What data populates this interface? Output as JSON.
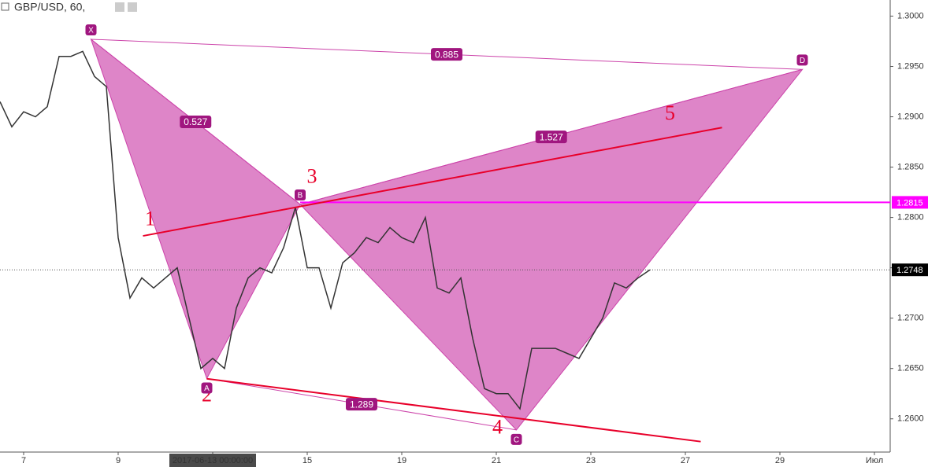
{
  "chart_data": {
    "type": "line",
    "title": "GBP/USD, 60,",
    "color": "#333333",
    "categories": [
      null,
      null,
      "7",
      null,
      null,
      null,
      null,
      null,
      null,
      null,
      "9",
      null,
      null,
      null,
      null,
      null,
      null,
      null,
      "2017-06-13 00:00:00",
      null,
      null,
      null,
      null,
      null,
      null,
      null,
      "15",
      null,
      null,
      null,
      null,
      null,
      null,
      null,
      "19",
      null,
      null,
      null,
      null,
      null,
      null,
      null,
      "21",
      null,
      null,
      null,
      null,
      null,
      null,
      null,
      "23",
      null,
      null,
      null,
      null,
      null,
      null,
      null,
      "27",
      null,
      null,
      null,
      null,
      null,
      null,
      null,
      "29",
      null,
      null,
      null,
      null,
      null,
      null,
      null,
      "Июл"
    ],
    "values": [
      1.2915,
      1.289,
      1.2905,
      1.29,
      1.291,
      1.296,
      1.296,
      1.2965,
      1.294,
      1.293,
      1.278,
      1.272,
      1.274,
      1.273,
      1.274,
      1.275,
      1.27,
      1.265,
      1.266,
      1.265,
      1.271,
      1.274,
      1.275,
      1.2745,
      1.277,
      1.281,
      1.275,
      1.275,
      1.271,
      1.2755,
      1.2765,
      1.278,
      1.2775,
      1.279,
      1.278,
      1.2775,
      1.28,
      1.273,
      1.2725,
      1.274,
      1.268,
      1.263,
      1.2625,
      1.2625,
      1.261,
      1.267,
      1.267,
      1.267,
      1.2665,
      1.266,
      1.268,
      1.27,
      1.2735,
      1.273,
      1.274,
      1.2748,
      null,
      null,
      null,
      null,
      null,
      null,
      null,
      null,
      null,
      null,
      null,
      null,
      null,
      null,
      null,
      null,
      null,
      null,
      null
    ],
    "ylim": [
      1.2567,
      1.3016
    ],
    "yticks": [
      {
        "value": 1.26,
        "label": "1.2600"
      },
      {
        "value": 1.265,
        "label": "1.2650"
      },
      {
        "value": 1.27,
        "label": "1.2700"
      },
      {
        "value": 1.275,
        "label": "1.2750"
      },
      {
        "value": 1.28,
        "label": "1.2800"
      },
      {
        "value": 1.285,
        "label": "1.2850"
      },
      {
        "value": 1.29,
        "label": "1.2900"
      },
      {
        "value": 1.295,
        "label": "1.2950"
      },
      {
        "value": 1.3,
        "label": "1.3000"
      }
    ],
    "pattern": {
      "color": "#cc44aa",
      "points": [
        {
          "label": "X",
          "index": 7.7,
          "price": 1.2977
        },
        {
          "label": "A",
          "index": 17.5,
          "price": 1.264
        },
        {
          "label": "B",
          "index": 25.4,
          "price": 1.2813
        },
        {
          "label": "C",
          "index": 43.7,
          "price": 1.2589
        },
        {
          "label": "D",
          "index": 67.9,
          "price": 1.2947
        }
      ],
      "ratios": [
        {
          "between": [
            0,
            4
          ],
          "value": 0.885
        },
        {
          "between": [
            0,
            2
          ],
          "value": 0.527
        },
        {
          "between": [
            2,
            4
          ],
          "value": 1.527
        },
        {
          "between": [
            1,
            3
          ],
          "value": 1.289
        }
      ]
    },
    "trend_lines": {
      "color": "#e8002a",
      "lines": [
        {
          "start": {
            "index": 12.1,
            "price": 1.27817
          },
          "end": {
            "index": 61.1,
            "price": 1.28893
          }
        },
        {
          "start": {
            "index": 17.5,
            "price": 1.26398
          },
          "end": {
            "index": 59.3,
            "price": 1.25774
          }
        }
      ],
      "waves": [
        {
          "label": 1,
          "index": 12.7,
          "price": 1.2797
        },
        {
          "label": 2,
          "index": 17.5,
          "price": 1.2622
        },
        {
          "label": 3,
          "index": 26.4,
          "price": 1.2839
        },
        {
          "label": 4,
          "index": 42.1,
          "price": 1.259
        },
        {
          "label": 5,
          "index": 56.7,
          "price": 1.2902
        }
      ]
    },
    "level": {
      "price": 1.2815,
      "label": "1.2815",
      "color": "#ff00ff"
    },
    "last_price": {
      "price": 1.2748,
      "label": "1.2748",
      "color": "#000000"
    }
  }
}
